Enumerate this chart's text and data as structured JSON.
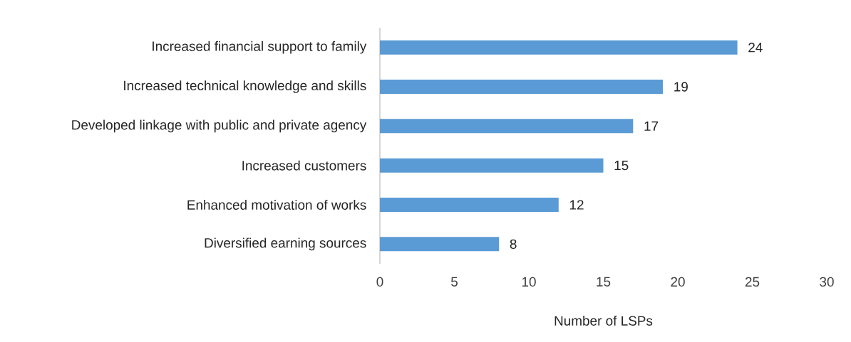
{
  "chart_data": {
    "type": "bar",
    "orientation": "horizontal",
    "xlabel": "Number of LSPs",
    "categories": [
      "Increased financial support to family",
      "Increased technical knowledge and skills",
      "Developed linkage with public and private agency",
      "Increased customers",
      "Enhanced motivation of works",
      "Diversified earning sources"
    ],
    "values": [
      24,
      19,
      17,
      15,
      12,
      8
    ],
    "color": "#5b9bd5",
    "xlim": [
      0,
      30
    ],
    "xticks": [
      0,
      5,
      10,
      15,
      20,
      25,
      30
    ],
    "data_labels": true
  }
}
